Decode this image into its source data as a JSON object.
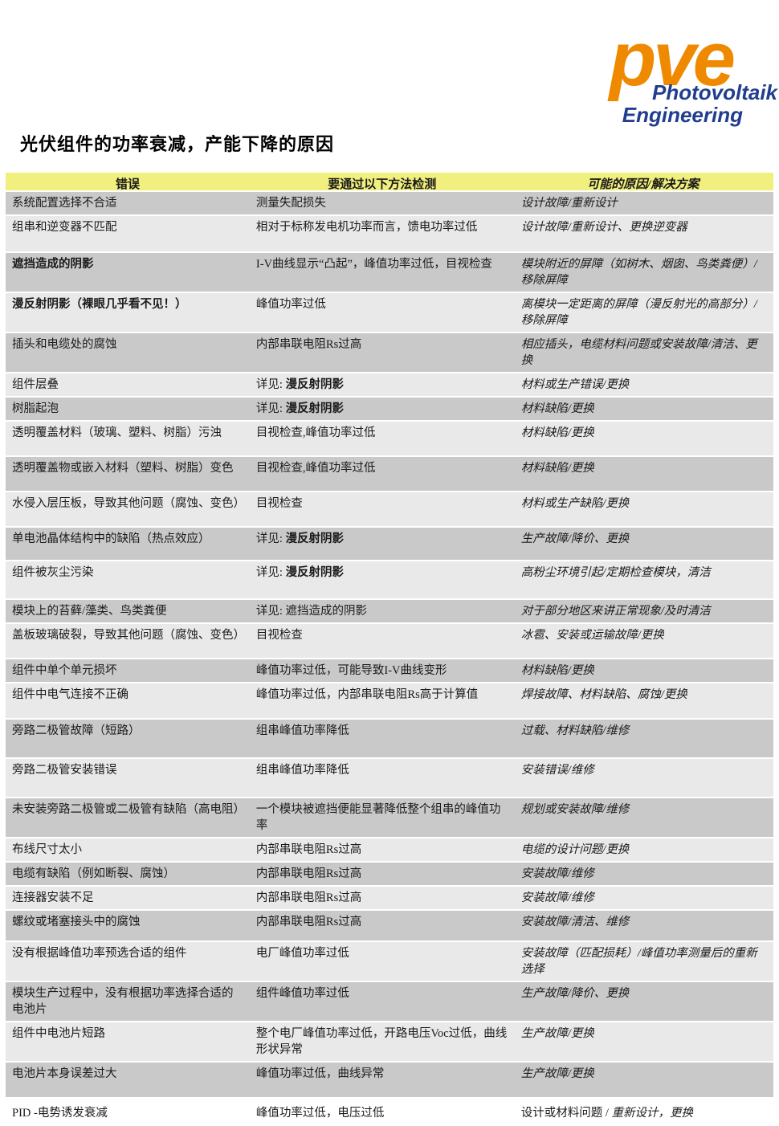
{
  "logo": {
    "brand": "pve",
    "line1": "Photovoltaik",
    "line2": "Engineering",
    "brand_color": "#ef8a00",
    "text_color": "#203d8f"
  },
  "title": "光伏组件的功率衰减，产能下降的原因",
  "table": {
    "headers": [
      "错误",
      "要通过以下方法检测",
      "可能的原因/解决方案"
    ],
    "header_bg": "#f1ef7d",
    "row_dark_bg": "#c9c9c9",
    "row_light_bg": "#e9e9e9",
    "rows": [
      {
        "error": "系统配置选择不合适",
        "detect": "测量失配损失",
        "detect_bold": "",
        "cause_prefix": "",
        "cause": "设计故障/重新设计",
        "bold_error": false,
        "shade": "dark",
        "mh": 24
      },
      {
        "error": "组串和逆变器不匹配",
        "detect": "相对于标称发电机功率而言，馈电功率过低",
        "detect_bold": "",
        "cause_prefix": "",
        "cause": "设计故障/重新设计、更换逆变器",
        "bold_error": false,
        "shade": "light",
        "mh": 44
      },
      {
        "error": "遮挡造成的阴影",
        "detect": "I-V曲线显示“凸起”，峰值功率过低，目视检查",
        "detect_bold": "",
        "cause_prefix": "",
        "cause": "模块附近的屏障（如树木、烟囱、鸟类粪便）/移除屏障",
        "bold_error": true,
        "shade": "dark",
        "mh": 42
      },
      {
        "error": "漫反射阴影（裸眼几乎看不见！）",
        "detect": "峰值功率过低",
        "detect_bold": "",
        "cause_prefix": "",
        "cause": "离模块一定距离的屏障（漫反射光的高部分）/移除屏障",
        "bold_error": true,
        "shade": "light",
        "mh": 42
      },
      {
        "error": "插头和电缆处的腐蚀",
        "detect": "内部串联电阻Rs过高",
        "detect_bold": "",
        "cause_prefix": "",
        "cause": "相应插头，电缆材料问题或安装故障/清洁、更换",
        "bold_error": false,
        "shade": "dark",
        "mh": 42
      },
      {
        "error": "组件层叠",
        "detect": "详见: ",
        "detect_bold": "漫反射阴影",
        "cause_prefix": "",
        "cause": "材料或生产错误/更换",
        "bold_error": false,
        "shade": "light",
        "mh": 28
      },
      {
        "error": "树脂起泡",
        "detect": "详见: ",
        "detect_bold": "漫反射阴影",
        "cause_prefix": "",
        "cause": "材料缺陷/更换",
        "bold_error": false,
        "shade": "dark",
        "mh": 23
      },
      {
        "error": "透明覆盖材料（玻璃、塑料、树脂）污浊",
        "detect": "目视检查,峰值功率过低",
        "detect_bold": "",
        "cause_prefix": "",
        "cause": "材料缺陷/更换",
        "bold_error": false,
        "shade": "light",
        "mh": 42
      },
      {
        "error": "透明覆盖物或嵌入材料（塑料、树脂）变色",
        "detect": "目视检查,峰值功率过低",
        "detect_bold": "",
        "cause_prefix": "",
        "cause": "材料缺陷/更换",
        "bold_error": false,
        "shade": "dark",
        "mh": 42
      },
      {
        "error": "水侵入层压板，导致其他问题（腐蚀、变色）",
        "detect": "目视检查",
        "detect_bold": "",
        "cause_prefix": "",
        "cause": "材料或生产缺陷/更换",
        "bold_error": false,
        "shade": "light",
        "mh": 42
      },
      {
        "error": "单电池晶体结构中的缺陷（热点效应）",
        "detect": "详见: ",
        "detect_bold": "漫反射阴影",
        "cause_prefix": "",
        "cause": "生产故障/降价、更换",
        "bold_error": false,
        "shade": "dark",
        "mh": 40
      },
      {
        "error": "组件被灰尘污染",
        "detect": "详见: ",
        "detect_bold": "漫反射阴影",
        "cause_prefix": "",
        "cause": "高粉尘环境引起/定期检查模块，清洁",
        "bold_error": false,
        "shade": "light",
        "mh": 46
      },
      {
        "error": "模块上的苔藓/藻类、鸟类粪便",
        "detect": "详见: 遮挡造成的阴影",
        "detect_bold": "",
        "cause_prefix": "",
        "cause": "对于部分地区来讲正常现象/及时清洁",
        "bold_error": false,
        "shade": "dark",
        "mh": 26
      },
      {
        "error": "盖板玻璃破裂，导致其他问题（腐蚀、变色）",
        "detect": "目视检查",
        "detect_bold": "",
        "cause_prefix": "",
        "cause": "冰雹、安装或运输故障/更换",
        "bold_error": false,
        "shade": "light",
        "mh": 42
      },
      {
        "error": "组件中单个单元损坏",
        "detect": "峰值功率过低，可能导致I-V曲线变形",
        "detect_bold": "",
        "cause_prefix": "",
        "cause": "材料缺陷/更换",
        "bold_error": false,
        "shade": "dark",
        "mh": 28
      },
      {
        "error": "组件中电气连接不正确",
        "detect": "峰值功率过低，内部串联电阻Rs高于计算值",
        "detect_bold": "",
        "cause_prefix": "",
        "cause": "焊接故障、材料缺陷、腐蚀/更换",
        "bold_error": false,
        "shade": "light",
        "mh": 43
      },
      {
        "error": "旁路二极管故障（短路）",
        "detect": "组串峰值功率降低",
        "detect_bold": "",
        "cause_prefix": "",
        "cause": "过载、材料缺陷/维修",
        "bold_error": false,
        "shade": "dark",
        "mh": 47
      },
      {
        "error": "旁路二极管安装错误",
        "detect": "组串峰值功率降低",
        "detect_bold": "",
        "cause_prefix": "",
        "cause": "安装错误/维修",
        "bold_error": false,
        "shade": "light",
        "mh": 47
      },
      {
        "error": "未安装旁路二极管或二极管有缺陷（高电阻）",
        "detect": "一个模块被遮挡便能显著降低整个组串的峰值功率",
        "detect_bold": "",
        "cause_prefix": "",
        "cause": "规划或安装故障/维修",
        "bold_error": false,
        "shade": "dark",
        "mh": 44
      },
      {
        "error": "布线尺寸太小",
        "detect": "内部串联电阻Rs过高",
        "detect_bold": "",
        "cause_prefix": "",
        "cause": "电缆的设计问题/更换",
        "bold_error": false,
        "shade": "light",
        "mh": 25
      },
      {
        "error": "电缆有缺陷（例如断裂、腐蚀）",
        "detect": "内部串联电阻Rs过高",
        "detect_bold": "",
        "cause_prefix": "",
        "cause": "安装故障/维修",
        "bold_error": false,
        "shade": "dark",
        "mh": 25
      },
      {
        "error": "连接器安装不足",
        "detect": "内部串联电阻Rs过高",
        "detect_bold": "",
        "cause_prefix": "",
        "cause": "安装故障/维修",
        "bold_error": false,
        "shade": "light",
        "mh": 25
      },
      {
        "error": "螺纹或堵塞接头中的腐蚀",
        "detect": "内部串联电阻Rs过高",
        "detect_bold": "",
        "cause_prefix": "",
        "cause": "安装故障/清洁、维修",
        "bold_error": false,
        "shade": "dark",
        "mh": 37
      },
      {
        "error": "没有根据峰值功率预选合适的组件",
        "detect": "电厂峰值功率过低",
        "detect_bold": "",
        "cause_prefix": "",
        "cause": "安装故障（匹配损耗）/峰值功率测量后的重新选择",
        "bold_error": false,
        "shade": "light",
        "mh": 47
      },
      {
        "error": "模块生产过程中，没有根据功率选择合适的电池片",
        "detect": "组件峰值功率过低",
        "detect_bold": "",
        "cause_prefix": "",
        "cause": "生产故障/降价、更换",
        "bold_error": false,
        "shade": "dark",
        "mh": 42
      },
      {
        "error": "组件中电池片短路",
        "detect": "整个电厂峰值功率过低，开路电压Voc过低，曲线形状异常",
        "detect_bold": "",
        "cause_prefix": "",
        "cause": "生产故障/更换",
        "bold_error": false,
        "shade": "light",
        "mh": 43
      },
      {
        "error": "电池片本身误差过大",
        "detect": "峰值功率过低，曲线异常",
        "detect_bold": "",
        "cause_prefix": "",
        "cause": "生产故障/更换",
        "bold_error": false,
        "shade": "dark",
        "mh": 43
      },
      {
        "error": "PID -电势诱发衰减",
        "detect": "峰值功率过低，电压过低",
        "detect_bold": "",
        "cause_prefix": "设计或材料问题 / ",
        "cause": "重新设计，更换",
        "bold_error": false,
        "shade": "none",
        "mh": 28
      }
    ]
  }
}
